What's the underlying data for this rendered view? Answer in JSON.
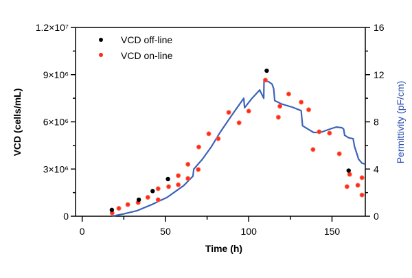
{
  "chart_data": {
    "type": "scatter",
    "title": "",
    "xlabel": "Time (h)",
    "ylabel": "VCD (cells/mL)",
    "y2label": "Permittivity (pF/cm)",
    "xlim": [
      -4,
      170
    ],
    "ylim": [
      0,
      12000000
    ],
    "y2lim": [
      0,
      16
    ],
    "grid": false,
    "legend_position": "top-left",
    "x_ticks": [
      "0",
      "50",
      "100",
      "150"
    ],
    "x_tick_values": [
      0,
      50,
      100,
      150
    ],
    "y_ticks": [
      "0",
      "3×10⁶",
      "6×10⁶",
      "9×10⁶",
      "1.2×10⁷"
    ],
    "y_tick_values": [
      0,
      3000000,
      6000000,
      9000000,
      12000000
    ],
    "y2_ticks": [
      "0",
      "4",
      "8",
      "12",
      "16"
    ],
    "y2_tick_values": [
      0,
      4,
      8,
      12,
      16
    ],
    "colors": {
      "offline": "#000000",
      "online": "#ff2a1a",
      "permittivity": "#3a62b8",
      "y2label": "#2a4db0"
    },
    "series": [
      {
        "name": "VCD off-line",
        "axis": "left",
        "kind": "scatter",
        "x": [
          17.8,
          34,
          42.3,
          51.5,
          110.8,
          160
        ],
        "y": [
          400000,
          1050000,
          1600000,
          2360000,
          9250000,
          2900000
        ]
      },
      {
        "name": "VCD on-line",
        "axis": "left",
        "kind": "scatter",
        "x": [
          18,
          22,
          27.4,
          33.6,
          39.4,
          45.6,
          45.6,
          51.9,
          57.7,
          57.7,
          63.5,
          63.5,
          69.7,
          70,
          76,
          81.7,
          88,
          94.2,
          100,
          110,
          117.8,
          118.7,
          124,
          131.5,
          136,
          138.6,
          142.3,
          148.5,
          154.4,
          160.6,
          159,
          165.5,
          168,
          168
        ],
        "y": [
          200000,
          500000,
          740000,
          870000,
          1200000,
          1050000,
          1750000,
          1880000,
          2000000,
          2580000,
          2400000,
          3300000,
          2970000,
          4400000,
          5240000,
          4930000,
          6600000,
          5940000,
          6680000,
          8650000,
          6290000,
          6990000,
          7770000,
          7250000,
          6770000,
          4240000,
          5370000,
          5280000,
          3970000,
          2660000,
          1880000,
          1970000,
          2450000,
          1350000
        ]
      },
      {
        "name": "Permittivity",
        "axis": "right",
        "kind": "line",
        "x": [
          18,
          25,
          33,
          42,
          51,
          57,
          61,
          66.5,
          67,
          72,
          77.6,
          83,
          90,
          97,
          97.5,
          102,
          106.6,
          109,
          109.2,
          112,
          114,
          115,
          115.6,
          120,
          126,
          131.5,
          132.3,
          136,
          139,
          143,
          146.5,
          150,
          152.7,
          156,
          157,
          157.6,
          160,
          162.7,
          163.5,
          166,
          168,
          170
        ],
        "y": [
          0,
          0.2,
          0.47,
          1.0,
          1.6,
          2.2,
          2.6,
          3.4,
          4.0,
          4.8,
          5.9,
          7.15,
          8.6,
          10.0,
          9.2,
          10.0,
          10.7,
          10.0,
          11.5,
          11.4,
          11.2,
          10.8,
          9.8,
          9.5,
          9.25,
          8.95,
          7.67,
          7.35,
          7.1,
          7.1,
          7.27,
          7.45,
          7.56,
          7.5,
          7.38,
          6.86,
          6.65,
          6.57,
          5.93,
          4.83,
          4.5,
          4.42
        ]
      }
    ]
  }
}
